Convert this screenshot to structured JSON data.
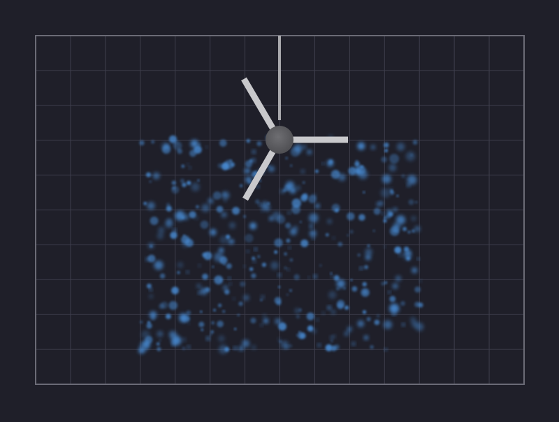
{
  "colors": {
    "background": "#1f1f29",
    "grid_line": "#3e3e4c",
    "board_border": "#6b6b76",
    "particle": "#4a8ed8",
    "hub": "#5f5f63",
    "arm": "#c9c9cc",
    "rod": "#a9a9ad"
  },
  "board": {
    "columns": 14,
    "rows": 10
  },
  "hub": {
    "icon": "rotor-hub",
    "arm_count": 3
  },
  "particles": {
    "icon": "blue-particle",
    "count": 420
  }
}
